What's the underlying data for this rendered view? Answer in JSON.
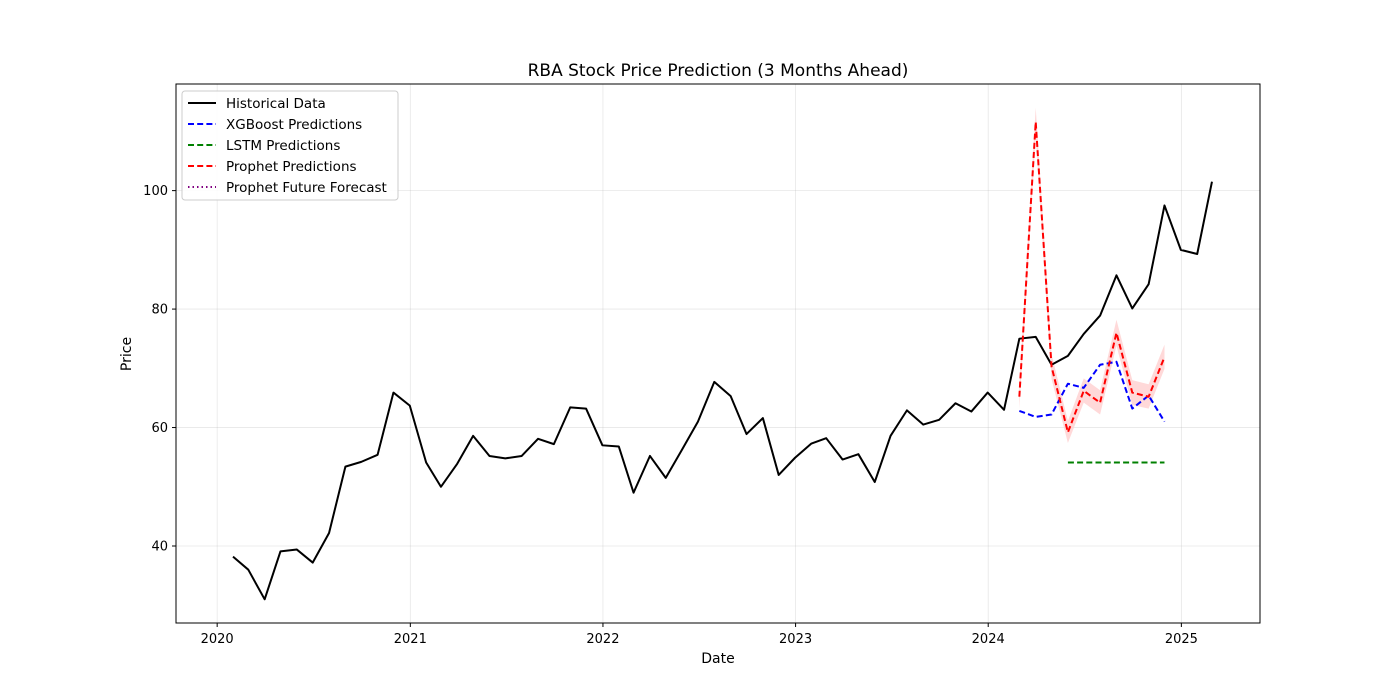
{
  "chart_data": {
    "type": "line",
    "title": "RBA Stock Price Prediction (3 Months Ahead)",
    "xlabel": "Date",
    "ylabel": "Price",
    "xlim": [
      "2019-10-15",
      "2025-05-30"
    ],
    "ylim": [
      27,
      118
    ],
    "x_ticks": [
      "2020",
      "2021",
      "2022",
      "2023",
      "2024",
      "2025"
    ],
    "y_ticks": [
      40,
      60,
      80,
      100
    ],
    "grid": true,
    "legend_position": "top-left",
    "series": [
      {
        "name": "Historical Data",
        "color": "#000000",
        "style": "solid",
        "x": [
          "2020-01-31",
          "2020-02-29",
          "2020-03-31",
          "2020-04-30",
          "2020-05-31",
          "2020-06-30",
          "2020-07-31",
          "2020-08-31",
          "2020-09-30",
          "2020-10-31",
          "2020-11-30",
          "2020-12-31",
          "2021-01-31",
          "2021-02-28",
          "2021-03-31",
          "2021-04-30",
          "2021-05-31",
          "2021-06-30",
          "2021-07-31",
          "2021-08-31",
          "2021-09-30",
          "2021-10-31",
          "2021-11-30",
          "2021-12-31",
          "2022-01-31",
          "2022-02-28",
          "2022-03-31",
          "2022-04-30",
          "2022-05-31",
          "2022-06-30",
          "2022-07-31",
          "2022-08-31",
          "2022-09-30",
          "2022-10-31",
          "2022-11-30",
          "2022-12-31",
          "2023-01-31",
          "2023-02-28",
          "2023-03-31",
          "2023-04-30",
          "2023-05-31",
          "2023-06-30",
          "2023-07-31",
          "2023-08-31",
          "2023-09-30",
          "2023-10-31",
          "2023-11-30",
          "2023-12-31",
          "2024-01-31",
          "2024-02-29",
          "2024-03-31",
          "2024-04-30",
          "2024-05-31",
          "2024-06-30",
          "2024-07-31",
          "2024-08-31",
          "2024-09-30",
          "2024-10-31",
          "2024-11-30",
          "2024-12-31",
          "2025-01-31",
          "2025-02-28"
        ],
        "values": [
          38.2,
          36.0,
          31.0,
          39.1,
          39.4,
          37.2,
          42.2,
          53.4,
          54.2,
          55.4,
          65.9,
          63.7,
          54.1,
          50.0,
          53.9,
          58.6,
          55.2,
          54.8,
          55.2,
          58.1,
          57.2,
          63.4,
          63.2,
          57.0,
          56.8,
          49.0,
          55.2,
          51.5,
          56.3,
          61.0,
          67.7,
          65.3,
          58.9,
          61.6,
          52.0,
          54.9,
          57.3,
          58.2,
          54.6,
          55.5,
          50.8,
          58.6,
          62.9,
          60.5,
          61.3,
          64.1,
          62.7,
          65.9,
          63.0,
          75.0,
          75.3,
          70.6,
          72.1,
          75.8,
          78.9,
          85.7,
          80.1,
          84.2,
          97.5,
          90.0,
          89.3,
          101.5
        ]
      },
      {
        "name": "XGBoost Predictions",
        "color": "#0000ff",
        "style": "dashed",
        "x": [
          "2024-02-29",
          "2024-03-31",
          "2024-04-30",
          "2024-05-31",
          "2024-06-30",
          "2024-07-31",
          "2024-08-31",
          "2024-09-30",
          "2024-10-31",
          "2024-11-30"
        ],
        "values": [
          62.8,
          61.8,
          62.2,
          67.4,
          66.7,
          70.6,
          71.1,
          63.2,
          65.4,
          61.0
        ]
      },
      {
        "name": "LSTM Predictions",
        "color": "#008000",
        "style": "dashed",
        "x": [
          "2024-05-31",
          "2024-06-30",
          "2024-07-31",
          "2024-08-31",
          "2024-09-30",
          "2024-10-31",
          "2024-11-30"
        ],
        "values": [
          54.1,
          54.1,
          54.1,
          54.1,
          54.1,
          54.1,
          54.1
        ]
      },
      {
        "name": "Prophet Predictions",
        "color": "#ff0000",
        "style": "dashed",
        "x": [
          "2024-02-29",
          "2024-03-31",
          "2024-04-30",
          "2024-05-31",
          "2024-06-30",
          "2024-07-31",
          "2024-08-31",
          "2024-09-30",
          "2024-10-31",
          "2024-11-30"
        ],
        "values": [
          65.2,
          111.6,
          70.3,
          59.2,
          66.2,
          64.2,
          76.0,
          65.9,
          65.2,
          71.9
        ],
        "lower": [
          63.2,
          109.2,
          68.2,
          57.4,
          64.2,
          62.2,
          73.8,
          63.8,
          63.2,
          69.9
        ],
        "upper": [
          67.2,
          114.0,
          72.4,
          61.1,
          68.3,
          66.3,
          78.2,
          68.0,
          67.3,
          74.0
        ],
        "band_color": "#ffd0d0"
      },
      {
        "name": "Prophet Future Forecast",
        "color": "#800080",
        "style": "dotted",
        "x": [],
        "values": []
      }
    ]
  }
}
